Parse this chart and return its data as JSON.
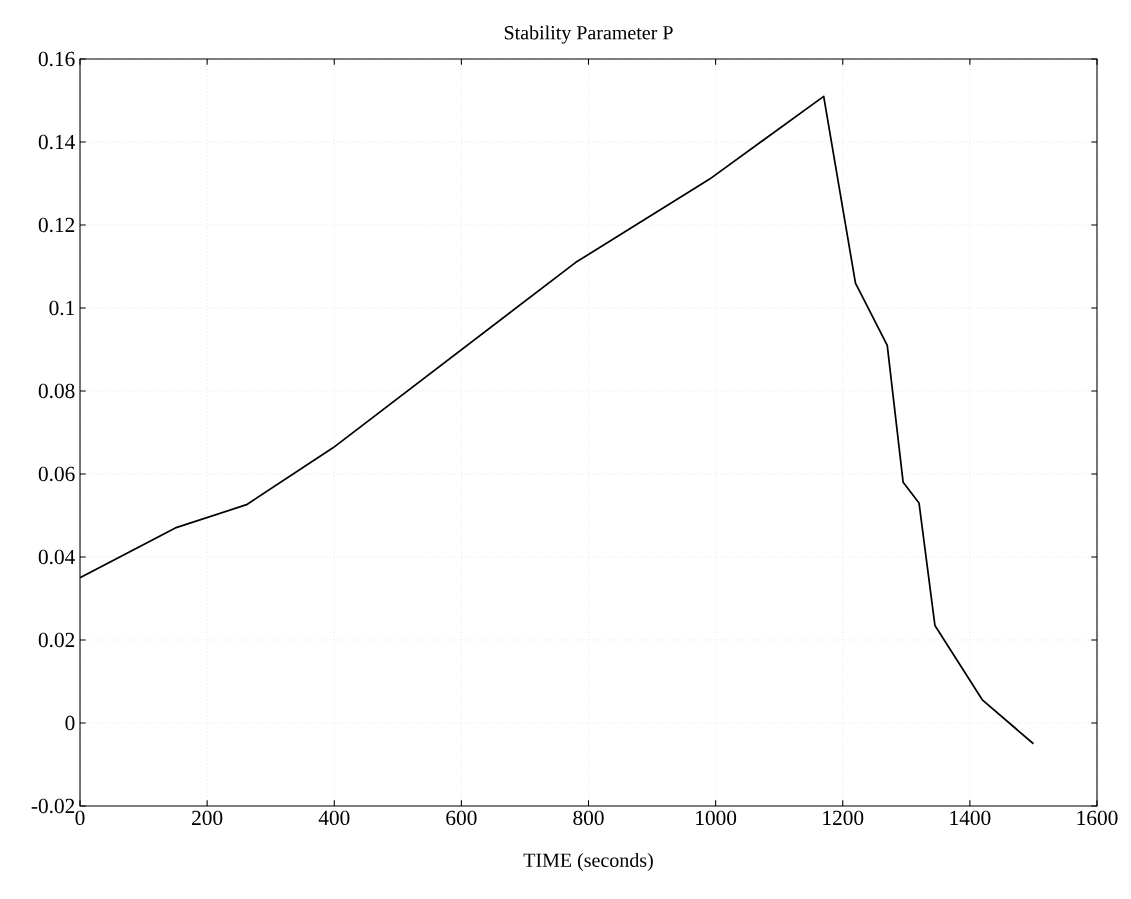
{
  "chart_data": {
    "type": "line",
    "title": "Stability Parameter P",
    "xlabel": "TIME (seconds)",
    "x": [
      0,
      150,
      262,
      398,
      780,
      990,
      1170,
      1220,
      1270,
      1295,
      1320,
      1345,
      1420,
      1500
    ],
    "values": [
      0.035,
      0.047,
      0.0526,
      0.0663,
      0.111,
      0.131,
      0.151,
      0.106,
      0.091,
      0.058,
      0.053,
      0.0235,
      0.0055,
      -0.005
    ],
    "color": "#000000",
    "xlim": [
      0,
      1600
    ],
    "ylim": [
      -0.02,
      0.16
    ],
    "xticks": [
      0,
      200,
      400,
      600,
      800,
      1000,
      1200,
      1400,
      1600
    ],
    "yticks": [
      -0.02,
      0,
      0.02,
      0.04,
      0.06,
      0.08,
      0.1,
      0.12,
      0.14,
      0.16
    ],
    "grid": true,
    "line_style": "solid",
    "marker": "none"
  }
}
